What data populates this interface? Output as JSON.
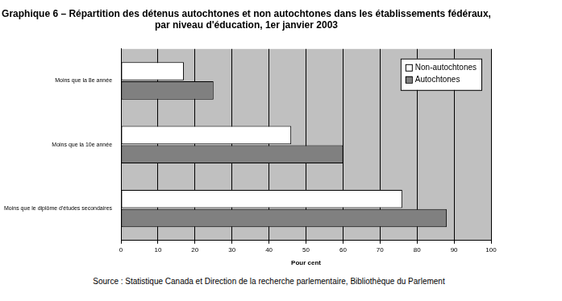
{
  "chart_data": {
    "type": "bar",
    "orientation": "horizontal",
    "title": [
      "Graphique 6 – Répartition des détenus autochtones et non autochtones dans les établissements fédéraux,",
      "par niveau d'éducation, 1er janvier 2003"
    ],
    "categories": [
      "Moins que la 8e année",
      "Moins que la 10e année",
      "Moins que le diplôme d'études secondaires"
    ],
    "series": [
      {
        "name": "Non-autochtones",
        "color": "#ffffff",
        "values": [
          17,
          46,
          76
        ]
      },
      {
        "name": "Autochtones",
        "color": "#808080",
        "values": [
          25,
          60,
          88
        ]
      }
    ],
    "xlabel": "Pour cent",
    "xlim": [
      0,
      100
    ],
    "xticks": [
      0,
      10,
      20,
      30,
      40,
      50,
      60,
      70,
      80,
      90,
      100
    ],
    "grid": true,
    "legend": "upper right",
    "source": "Source : Statistique Canada et Direction de la recherche parlementaire, Bibliothèque du Parlement"
  }
}
